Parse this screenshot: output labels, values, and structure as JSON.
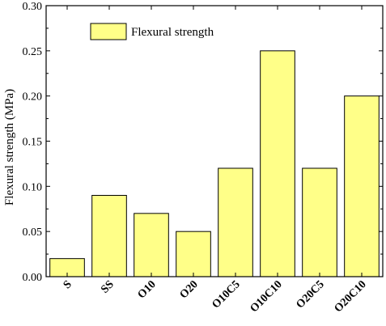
{
  "chart_data": {
    "type": "bar",
    "title": "",
    "xlabel": "",
    "ylabel": "Flexural strength (MPa)",
    "categories": [
      "S",
      "SS",
      "O10",
      "O20",
      "O10C5",
      "O10C10",
      "O20C5",
      "O20C10"
    ],
    "series": [
      {
        "name": "Flexural strength",
        "values": [
          0.02,
          0.09,
          0.07,
          0.05,
          0.12,
          0.25,
          0.12,
          0.2
        ]
      }
    ],
    "ylim": [
      0,
      0.3
    ],
    "yticks": [
      "0.00",
      "0.05",
      "0.10",
      "0.15",
      "0.20",
      "0.25",
      "0.30"
    ],
    "grid": false,
    "legend_position": "top-left",
    "bar_color": "#ffff88",
    "bar_edge_color": "#000000"
  }
}
